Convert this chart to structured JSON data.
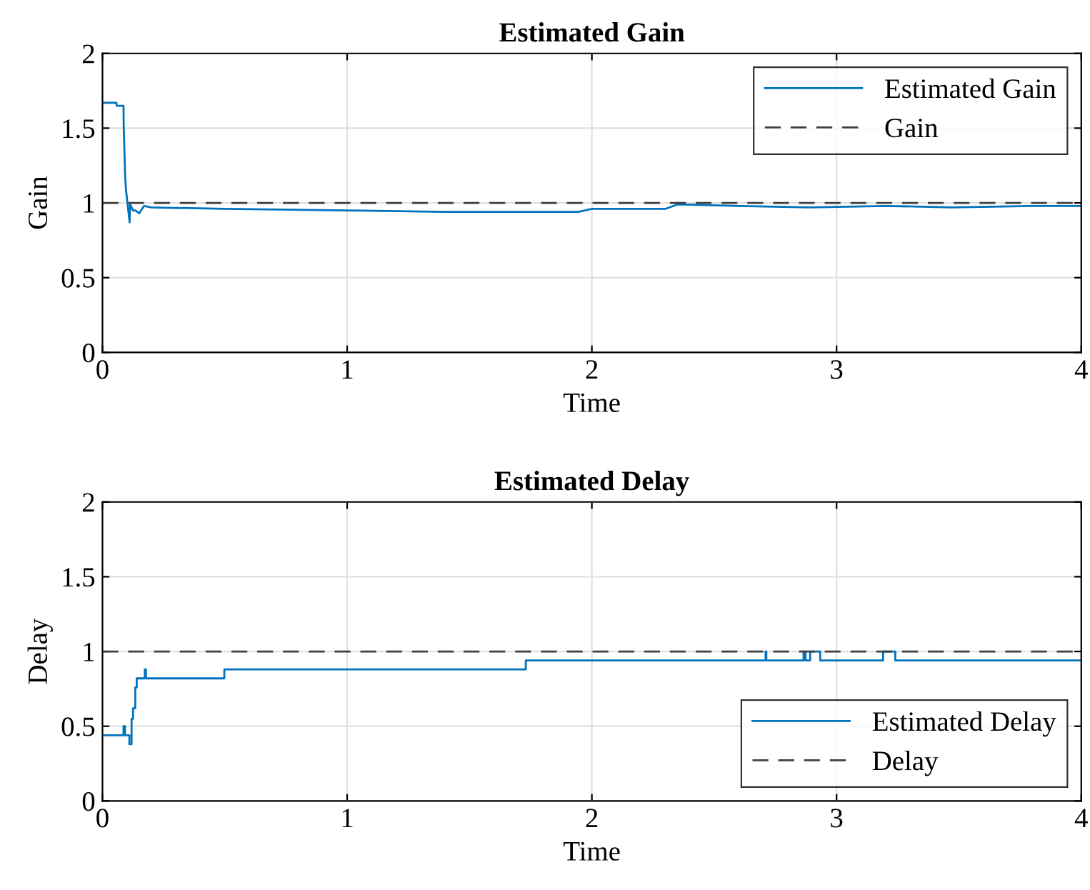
{
  "chart_data": [
    {
      "type": "line",
      "title": "Estimated Gain",
      "xlabel": "Time",
      "ylabel": "Gain",
      "xlim": [
        0,
        4
      ],
      "ylim": [
        0,
        2
      ],
      "xticks": [
        0,
        1,
        2,
        3,
        4
      ],
      "yticks": [
        0,
        0.5,
        1,
        1.5,
        2
      ],
      "grid": true,
      "legend": "top right",
      "series": [
        {
          "name": "Estimated Gain",
          "color": "#0072bd",
          "line_style": "solid",
          "x": [
            0,
            0.057,
            0.058,
            0.086,
            0.087,
            0.093,
            0.096,
            0.111,
            0.113,
            0.125,
            0.135,
            0.15,
            0.17,
            0.2,
            0.5,
            1.0,
            1.4,
            1.7,
            1.945,
            2.0,
            2.3,
            2.35,
            2.6,
            2.89,
            3.2,
            3.47,
            3.8,
            4.0
          ],
          "values": [
            1.67,
            1.67,
            1.65,
            1.65,
            1.5,
            1.17,
            1.09,
            0.87,
            0.99,
            0.95,
            0.95,
            0.93,
            0.98,
            0.97,
            0.96,
            0.95,
            0.94,
            0.94,
            0.94,
            0.96,
            0.96,
            0.99,
            0.98,
            0.97,
            0.98,
            0.97,
            0.98,
            0.98
          ]
        },
        {
          "name": "Gain",
          "color": "#404040",
          "line_style": "dashed",
          "x": [
            0,
            4
          ],
          "values": [
            1,
            1
          ]
        }
      ]
    },
    {
      "type": "line",
      "title": "Estimated Delay",
      "xlabel": "Time",
      "ylabel": "Delay",
      "xlim": [
        0,
        4
      ],
      "ylim": [
        0,
        2
      ],
      "xticks": [
        0,
        1,
        2,
        3,
        4
      ],
      "yticks": [
        0,
        0.5,
        1,
        1.5,
        2
      ],
      "grid": true,
      "legend": "bottom right",
      "series": [
        {
          "name": "Estimated Delay",
          "type": "step",
          "color": "#0072bd",
          "line_style": "solid",
          "x": [
            0,
            0.086,
            0.092,
            0.11,
            0.119,
            0.125,
            0.134,
            0.14,
            0.173,
            0.178,
            0.498,
            1.73,
            2.71,
            2.713,
            2.865,
            2.873,
            2.892,
            2.933,
            3.19,
            3.24,
            4.0
          ],
          "values": [
            0.44,
            0.5,
            0.44,
            0.38,
            0.55,
            0.62,
            0.76,
            0.82,
            0.88,
            0.82,
            0.88,
            0.94,
            1.0,
            0.94,
            1.0,
            0.94,
            1.0,
            0.94,
            1.0,
            0.94,
            0.94
          ]
        },
        {
          "name": "Delay",
          "color": "#404040",
          "line_style": "dashed",
          "x": [
            0,
            4
          ],
          "values": [
            1,
            1
          ]
        }
      ]
    }
  ]
}
